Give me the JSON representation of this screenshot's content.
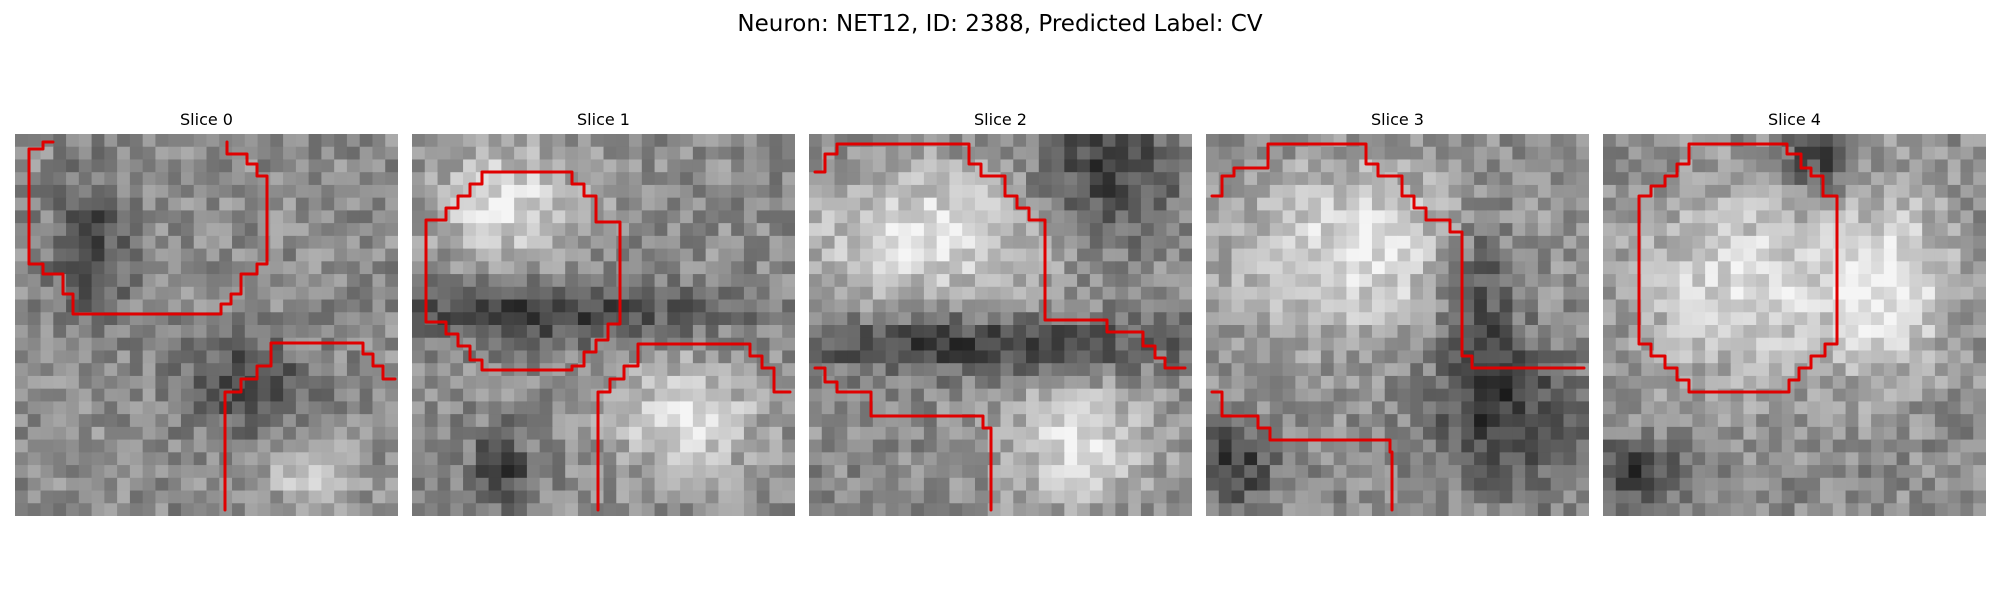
{
  "figure": {
    "title": "Neuron: NET12, ID: 2388, Predicted Label: CV",
    "contour_color": "#e00000",
    "colormap": "gray"
  },
  "panels": [
    {
      "title": "Slice 0"
    },
    {
      "title": "Slice 1"
    },
    {
      "title": "Slice 2"
    },
    {
      "title": "Slice 3"
    },
    {
      "title": "Slice 4"
    }
  ]
}
